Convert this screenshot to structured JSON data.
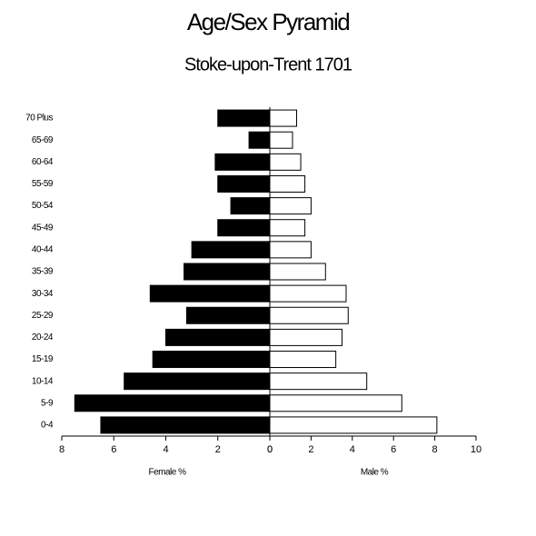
{
  "chart_data": {
    "type": "pyramid",
    "title": "Age/Sex Pyramid",
    "subtitle": "Stoke-upon-Trent 1701",
    "categories": [
      "70 Plus",
      "65-69",
      "60-64",
      "55-59",
      "50-54",
      "45-49",
      "40-44",
      "35-39",
      "30-34",
      "25-29",
      "20-24",
      "15-19",
      "10-14",
      "5-9",
      "0-4"
    ],
    "left": {
      "label": "Female %",
      "color": "#000000",
      "xlim": [
        0,
        8
      ],
      "xticks": [
        0,
        2,
        4,
        6,
        8
      ],
      "values": [
        2.0,
        0.8,
        2.1,
        2.0,
        1.5,
        2.0,
        3.0,
        3.3,
        4.6,
        3.2,
        4.0,
        4.5,
        5.6,
        7.5,
        6.5
      ]
    },
    "right": {
      "label": "Male %",
      "color": "#ffffff",
      "xlim": [
        0,
        10
      ],
      "xticks": [
        0,
        2,
        4,
        6,
        8,
        10
      ],
      "values": [
        1.3,
        1.1,
        1.5,
        1.7,
        2.0,
        1.7,
        2.0,
        2.7,
        3.7,
        3.8,
        3.5,
        3.2,
        4.7,
        6.4,
        8.1
      ]
    }
  }
}
